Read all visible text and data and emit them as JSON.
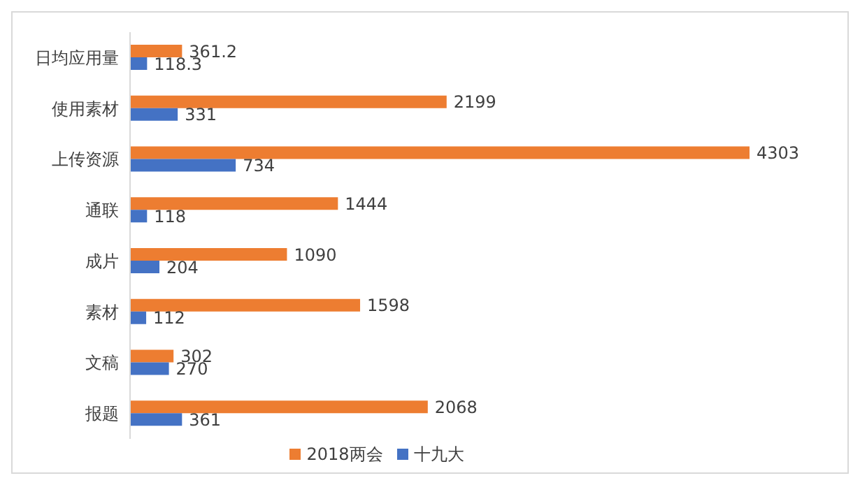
{
  "chart_data": {
    "type": "bar",
    "orientation": "horizontal",
    "categories": [
      "日均应用量",
      "使用素材",
      "上传资源",
      "通联",
      "成片",
      "素材",
      "文稿",
      "报题"
    ],
    "series": [
      {
        "name": "2018两会",
        "color": "#ed7d31",
        "values": [
          361.2,
          2199,
          4303,
          1444,
          1090,
          1598,
          302,
          2068
        ]
      },
      {
        "name": "十九大",
        "color": "#4472c4",
        "values": [
          118.3,
          331,
          734,
          118,
          204,
          112,
          270,
          361
        ]
      }
    ],
    "data_labels": true,
    "legend": "bottom",
    "grid": false,
    "tick_labels": "y"
  }
}
